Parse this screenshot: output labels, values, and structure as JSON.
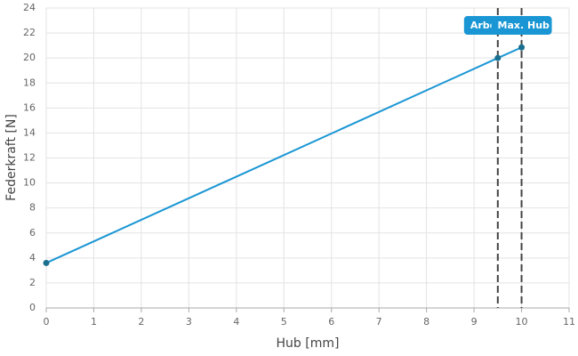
{
  "chart_data": {
    "type": "line",
    "x_label": "Hub [mm]",
    "y_label": "Federkraft [N]",
    "series": [
      {
        "name": "Federkraft",
        "color": "#1a96d4",
        "marker_color": "#1b6f8f",
        "x": [
          0,
          9.5,
          10
        ],
        "values": [
          3.6,
          20.0,
          20.85
        ]
      }
    ],
    "xlim": [
      0,
      11
    ],
    "xticks": [
      0,
      1,
      2,
      3,
      4,
      5,
      6,
      7,
      8,
      9,
      10,
      11
    ],
    "ylim": [
      0,
      24
    ],
    "yticks": [
      0,
      2,
      4,
      6,
      8,
      10,
      12,
      14,
      16,
      18,
      20,
      22,
      24
    ],
    "grid": true,
    "annotations": [
      {
        "x": 9.5,
        "label": "Arbe"
      },
      {
        "x": 10,
        "label": "Max. Hub"
      }
    ],
    "annotation_color": "#1a96d4"
  }
}
